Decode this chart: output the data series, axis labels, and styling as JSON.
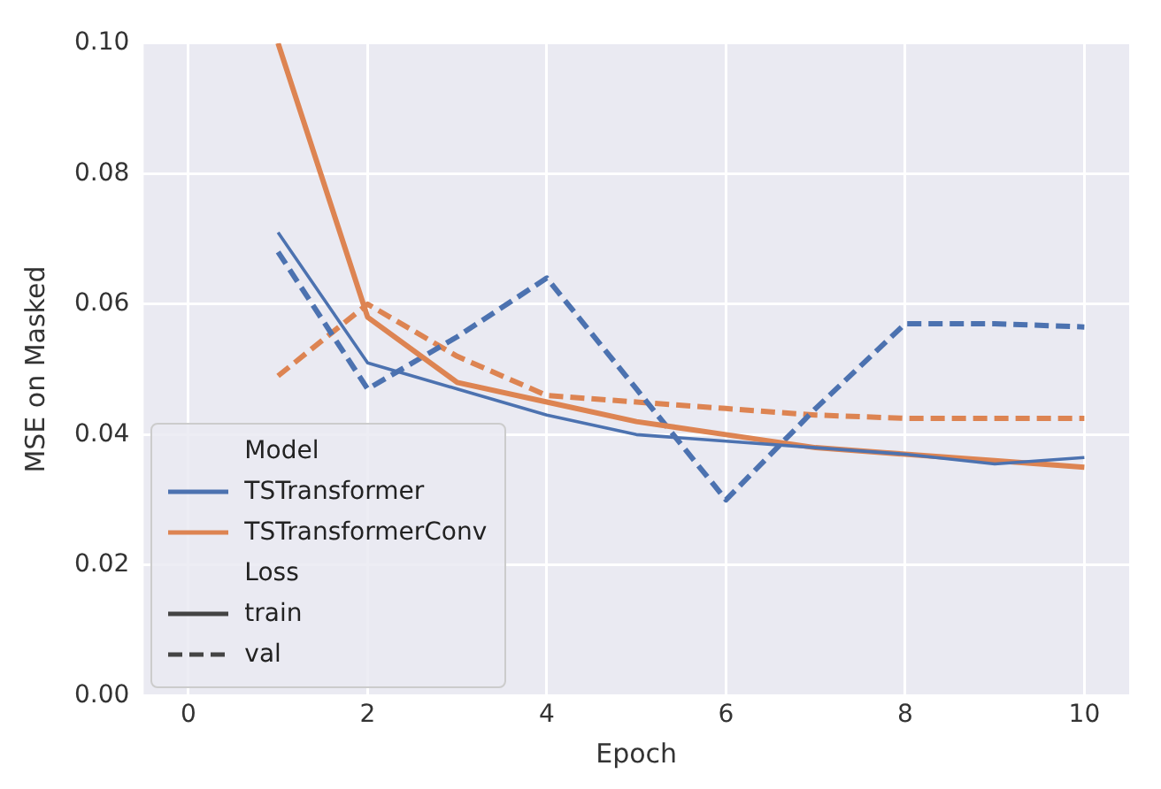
{
  "chart_data": {
    "type": "line",
    "xlabel": "Epoch",
    "ylabel": "MSE on Masked",
    "legend_title": "Model",
    "x": [
      1,
      2,
      3,
      4,
      5,
      6,
      7,
      8,
      9,
      10
    ],
    "series": [
      {
        "name": "TSTransformer",
        "color": "#4c72b0",
        "line_style": "solid",
        "values": [
          0.071,
          0.051,
          0.047,
          0.043,
          0.04,
          0.039,
          0.038,
          0.037,
          0.0355,
          0.0365
        ]
      },
      {
        "name": "TSTransformerConv",
        "color": "#dd8452",
        "line_style": "solid",
        "values": [
          0.1,
          0.058,
          0.048,
          0.045,
          0.042,
          0.04,
          0.038,
          0.037,
          0.036,
          0.035
        ]
      },
      {
        "color": "#4c72b0",
        "line_style": "dashed",
        "values": [
          0.068,
          0.047,
          0.055,
          0.064,
          0.047,
          0.03,
          0.044,
          0.057,
          0.057,
          0.0565
        ]
      },
      {
        "color": "#dd8452",
        "line_style": "dashed",
        "values": [
          0.049,
          0.06,
          0.052,
          0.046,
          0.045,
          0.044,
          0.043,
          0.0425,
          0.0425,
          0.0425
        ]
      }
    ],
    "annotations": [
      "Loss",
      "train",
      "val"
    ],
    "xlim": [
      -0.5,
      10.5
    ],
    "xticks": [
      0,
      2,
      4,
      6,
      8,
      10
    ],
    "ylim": [
      0,
      0.1
    ],
    "yticks": [
      {
        "value": 0,
        "label": "0.00"
      },
      {
        "value": 0.02,
        "label": "0.02"
      },
      {
        "value": 0.04,
        "label": "0.04"
      },
      {
        "value": 0.06,
        "label": "0.06"
      },
      {
        "value": 0.08,
        "label": "0.08"
      },
      {
        "value": 0.1,
        "label": "0.10"
      }
    ],
    "grid": true,
    "marker": "none",
    "legend": "bottom left"
  }
}
